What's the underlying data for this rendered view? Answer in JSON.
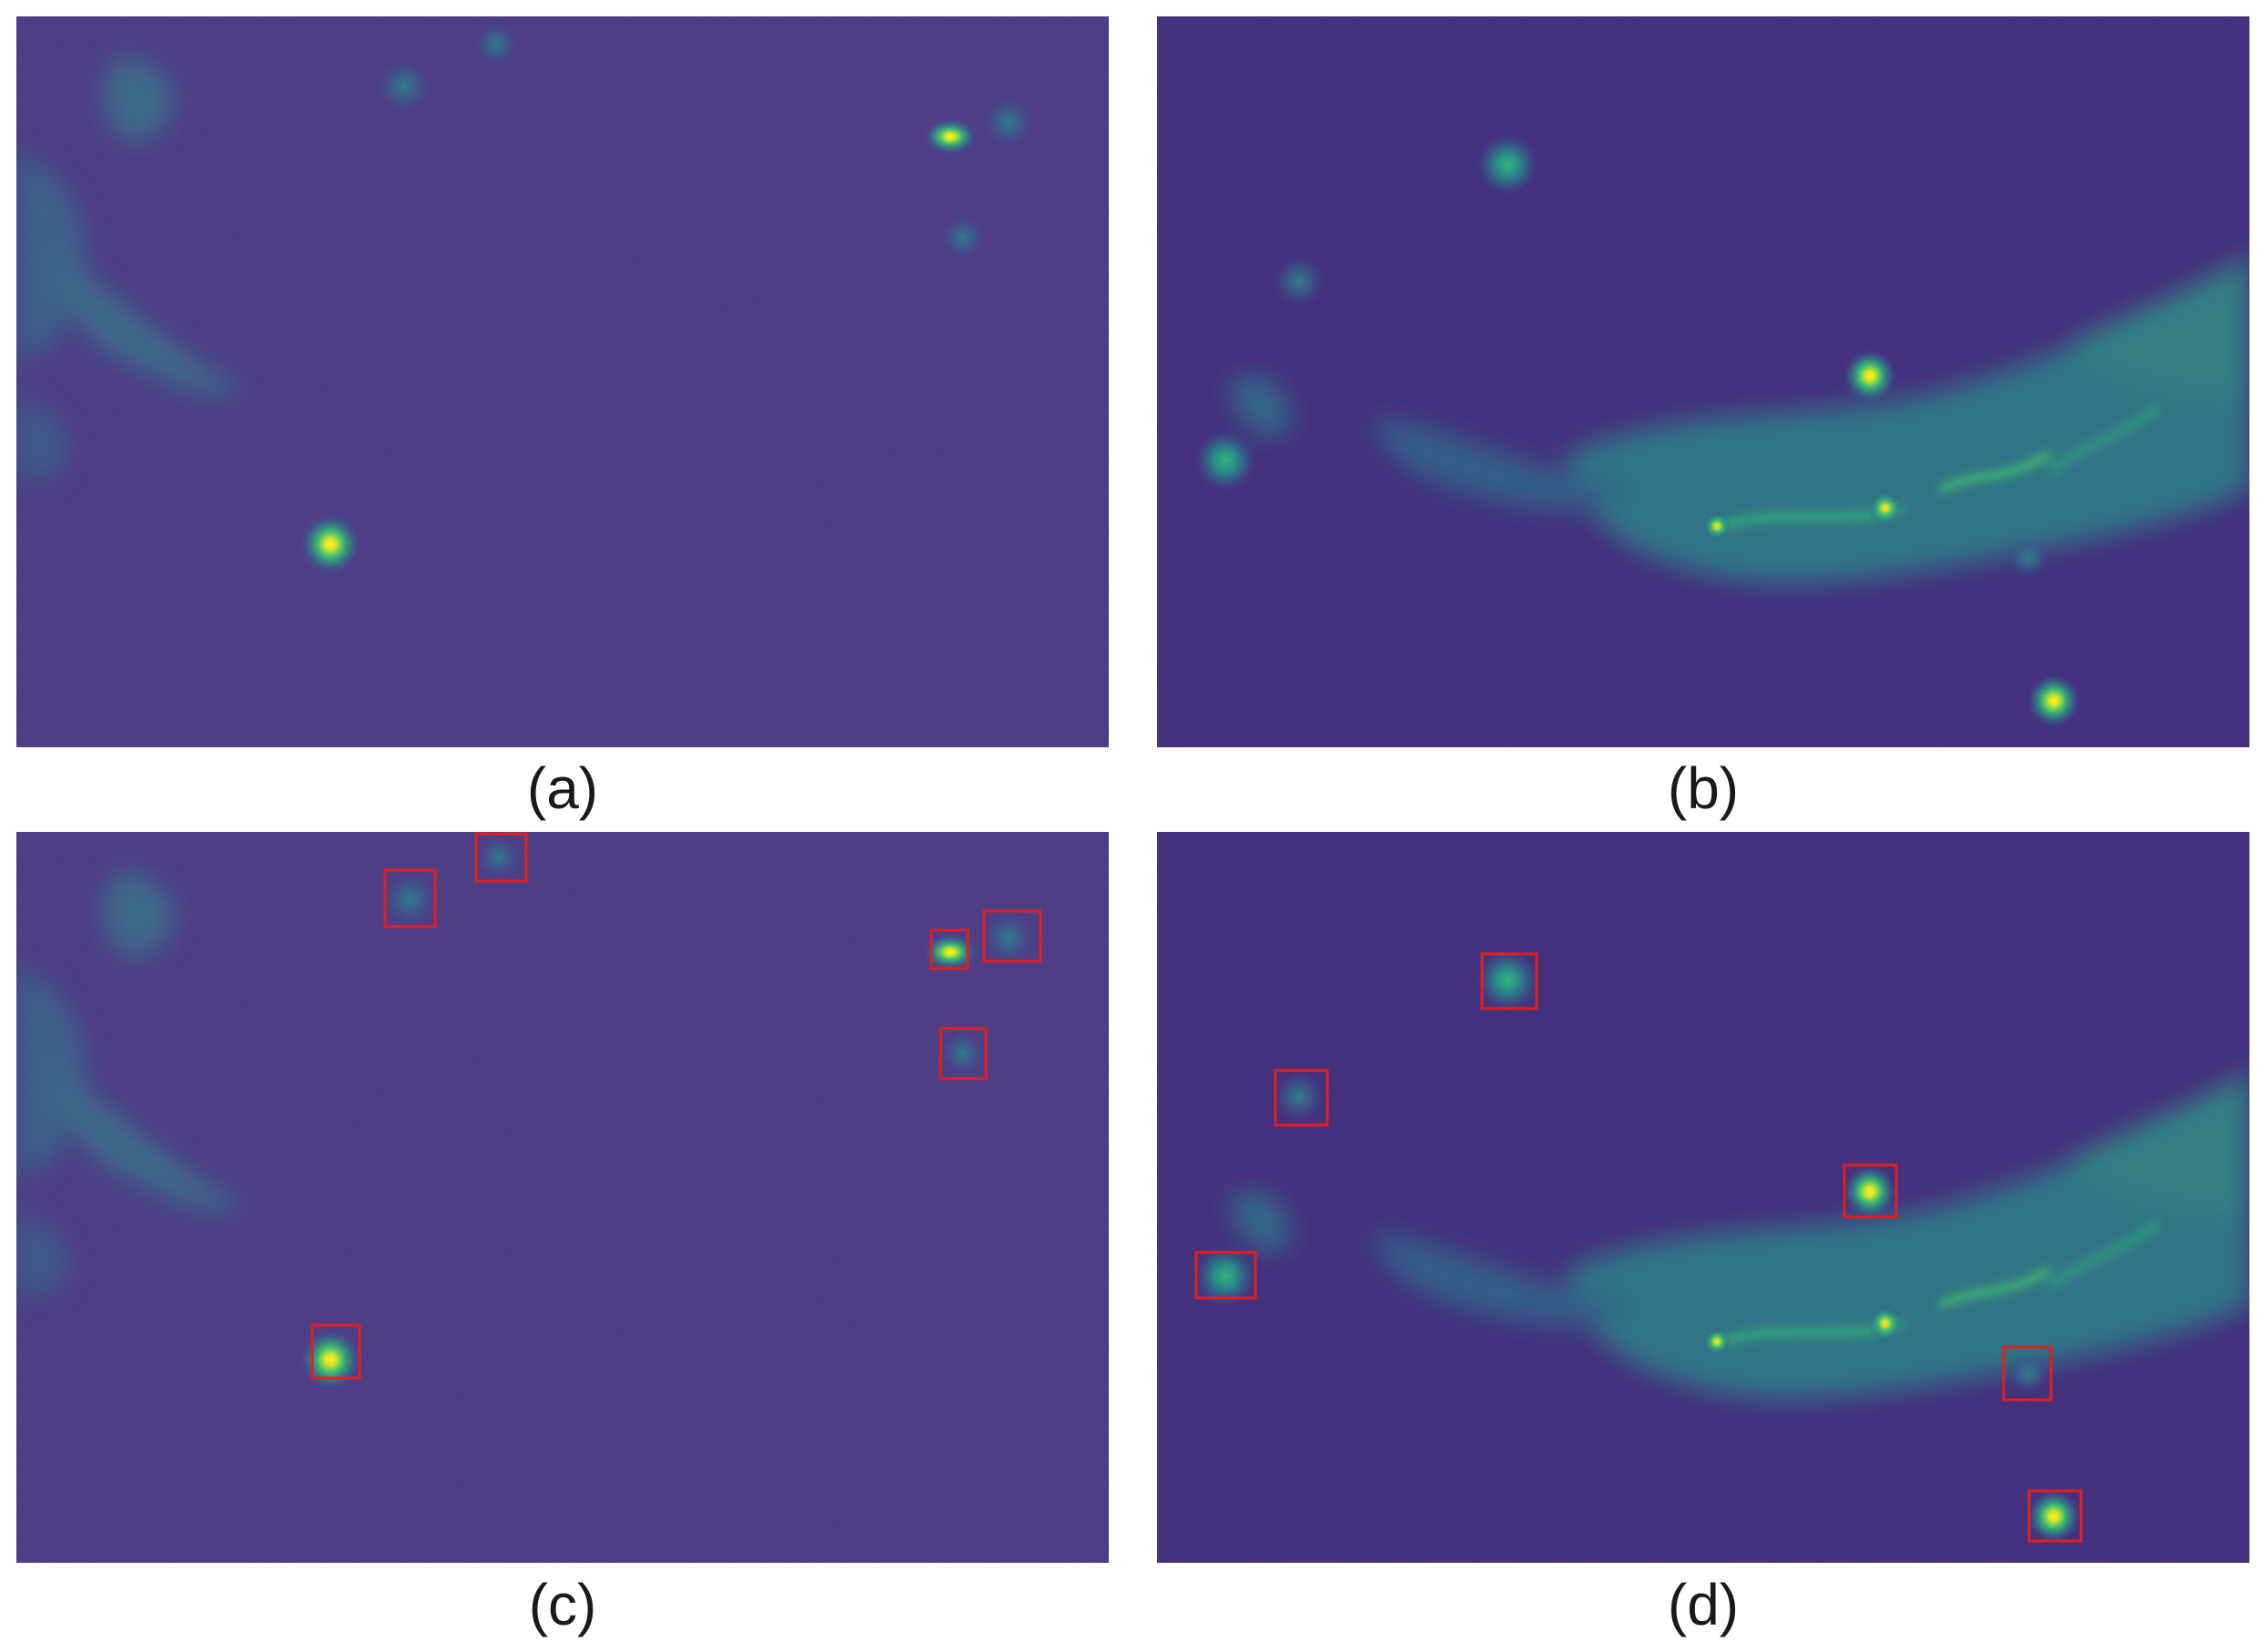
{
  "figure": {
    "panels": [
      {
        "id": "a",
        "caption": "(a)"
      },
      {
        "id": "b",
        "caption": "(b)"
      },
      {
        "id": "c",
        "caption": "(c)"
      },
      {
        "id": "d",
        "caption": "(d)"
      }
    ]
  },
  "colors": {
    "background_a": "#46337e",
    "background_b": "#3f2a78",
    "nebula": "#2f8f8c",
    "bright_core": "#f4f21e",
    "mid_glow": "#2db37a",
    "box_stroke": "#e0201f"
  }
}
